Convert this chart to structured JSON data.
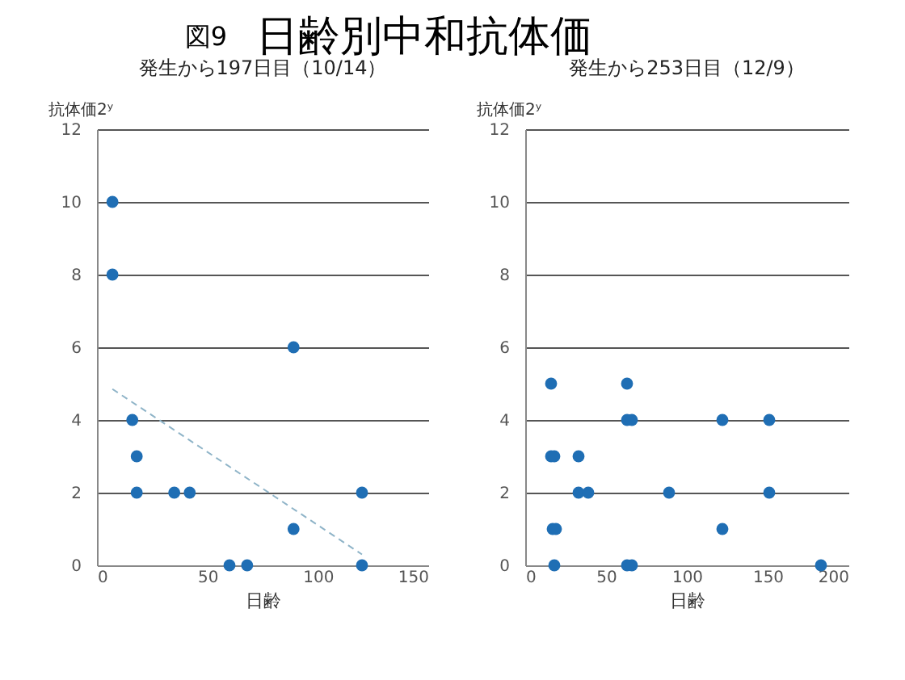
{
  "chart_data": [
    {
      "type": "scatter",
      "title": "発生から197日目（10/14）",
      "xlabel": "日齢",
      "ylabel": "抗体価2ʸ",
      "annotations": [
        "図9",
        "日齢別中和抗体価"
      ],
      "xlim": [
        0,
        150
      ],
      "xticks": [
        0,
        50,
        100,
        150
      ],
      "ylim": [
        0,
        12
      ],
      "yticks": [
        0,
        2,
        4,
        6,
        8,
        10,
        12
      ],
      "grid": "y",
      "series": [
        {
          "color": "#1f6eb4",
          "marker": "circle",
          "x": [
            7,
            7,
            16,
            18,
            18,
            35,
            42,
            60,
            68,
            89,
            89,
            120,
            120
          ],
          "values": [
            10,
            8,
            4,
            3,
            2,
            2,
            2,
            0,
            0,
            6,
            1,
            2,
            0
          ]
        },
        {
          "type": "line",
          "color": "#8fb4c8",
          "line_style": "dashed",
          "x": [
            7,
            120
          ],
          "values": [
            4.85,
            0.3
          ]
        }
      ]
    },
    {
      "type": "scatter",
      "title": "発生から253日目（12/9）",
      "xlabel": "日齢",
      "ylabel": "抗体価2ʸ",
      "xlim": [
        0,
        200
      ],
      "xticks": [
        0,
        50,
        100,
        150,
        200
      ],
      "ylim": [
        0,
        12
      ],
      "yticks": [
        0,
        2,
        4,
        6,
        8,
        10,
        12
      ],
      "grid": "y",
      "series": [
        {
          "color": "#1f6eb4",
          "marker": "circle",
          "x": [
            16,
            16,
            18,
            17,
            19,
            18,
            33,
            33,
            39,
            63,
            63,
            66,
            63,
            66,
            89,
            122,
            122,
            151,
            151,
            183
          ],
          "values": [
            5,
            3,
            3,
            1,
            1,
            0,
            3,
            2,
            2,
            5,
            4,
            4,
            0,
            0,
            2,
            4,
            1,
            4,
            2,
            0
          ]
        }
      ]
    }
  ]
}
